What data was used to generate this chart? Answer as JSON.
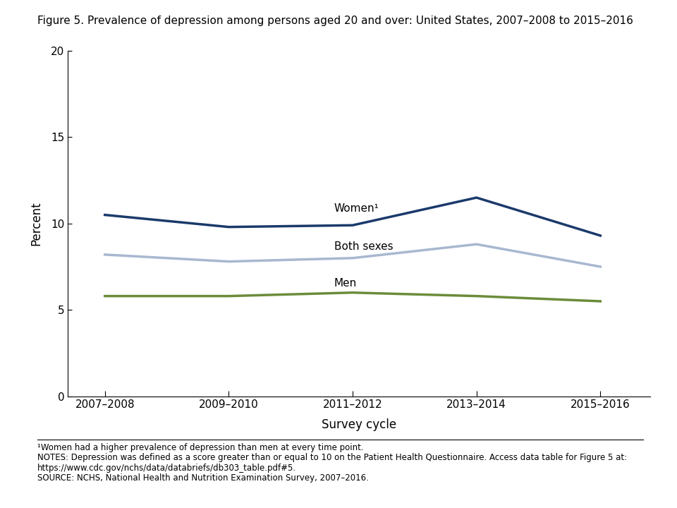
{
  "title": "Figure 5. Prevalence of depression among persons aged 20 and over: United States, 2007–2008 to 2015–2016",
  "xlabel": "Survey cycle",
  "ylabel": "Percent",
  "x_labels": [
    "2007–2008",
    "2009–2010",
    "2011–2012",
    "2013–2014",
    "2015–2016"
  ],
  "x_positions": [
    0,
    1,
    2,
    3,
    4
  ],
  "women": [
    10.5,
    9.8,
    9.9,
    11.5,
    9.3
  ],
  "both_sexes": [
    8.2,
    7.8,
    8.0,
    8.8,
    7.5
  ],
  "men": [
    5.8,
    5.8,
    6.0,
    5.8,
    5.5
  ],
  "women_color": "#1B3A6B",
  "both_sexes_color": "#A8B8D0",
  "men_color": "#6B8C3A",
  "women_label": "Women¹",
  "both_sexes_label": "Both sexes",
  "men_label": "Men",
  "ylim": [
    0,
    20
  ],
  "yticks": [
    0,
    5,
    10,
    15,
    20
  ],
  "line_width": 2.5,
  "footnote1": "¹Women had a higher prevalence of depression than men at every time point.",
  "footnote2": "NOTES: Depression was defined as a score greater than or equal to 10 on the Patient Health Questionnaire. Access data table for Figure 5 at:",
  "footnote3": "https://www.cdc.gov/nchs/data/databriefs/db303_table.pdf#5.",
  "footnote4": "SOURCE: NCHS, National Health and Nutrition Examination Survey, 2007–2016.",
  "background_color": "#ffffff"
}
